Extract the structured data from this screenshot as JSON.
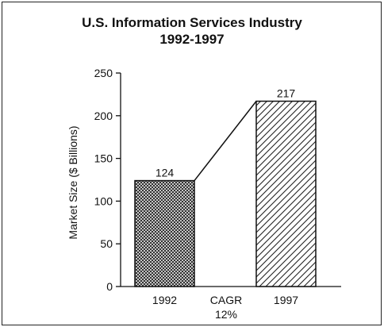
{
  "chart_data": {
    "type": "bar",
    "title": "U.S. Information Services Industry",
    "subtitle": "1992-1997",
    "ylabel": "Market Size ($ Billions)",
    "xlabel": "",
    "ylim": [
      0,
      250
    ],
    "yticks": [
      0,
      50,
      100,
      150,
      200,
      250
    ],
    "categories": [
      "1992",
      "1997"
    ],
    "values": [
      124,
      217
    ],
    "data_labels": [
      "124",
      "217"
    ],
    "annotation": {
      "line1": "CAGR",
      "line2": "12%"
    },
    "bar_patterns": [
      "crosshatch",
      "diagonal-hatch"
    ],
    "grid": false,
    "legend": "none"
  }
}
